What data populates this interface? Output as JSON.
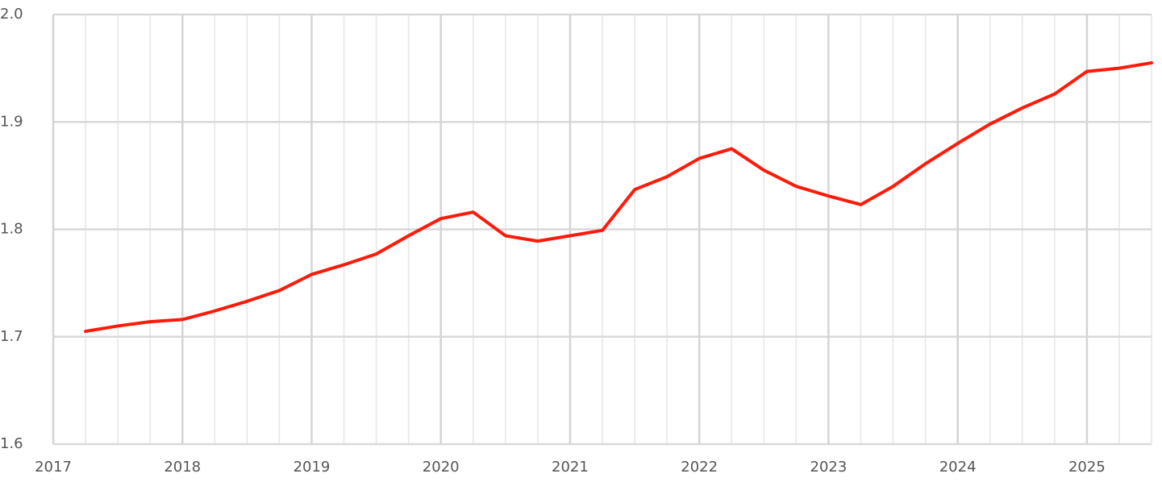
{
  "chart_data": {
    "type": "line",
    "x": [
      2017.25,
      2017.5,
      2017.75,
      2018,
      2018.25,
      2018.5,
      2018.75,
      2019,
      2019.25,
      2019.5,
      2019.75,
      2020,
      2020.25,
      2020.5,
      2020.75,
      2021,
      2021.25,
      2021.5,
      2021.75,
      2022,
      2022.25,
      2022.5,
      2022.75,
      2023,
      2023.25,
      2023.5,
      2023.75,
      2024,
      2024.25,
      2024.5,
      2024.75,
      2025,
      2025.25,
      2025.5
    ],
    "series": [
      {
        "color": "#ff1a0a",
        "values": [
          1.705,
          1.71,
          1.714,
          1.716,
          1.724,
          1.733,
          1.743,
          1.758,
          1.767,
          1.777,
          1.794,
          1.81,
          1.816,
          1.794,
          1.789,
          1.794,
          1.799,
          1.837,
          1.849,
          1.866,
          1.875,
          1.855,
          1.84,
          1.831,
          1.823,
          1.84,
          1.861,
          1.88,
          1.898,
          1.913,
          1.926,
          1.947,
          1.95,
          1.955
        ]
      }
    ],
    "xlim": [
      2017,
      2025.5
    ],
    "xticks": [
      2017,
      2018,
      2019,
      2020,
      2021,
      2022,
      2023,
      2024,
      2025
    ],
    "ylim": [
      1.6,
      2.0
    ],
    "yticks": [
      1.6,
      1.7,
      1.8,
      1.9,
      {
        "value": 2.0,
        "label": "2.0"
      }
    ],
    "grid": true
  }
}
